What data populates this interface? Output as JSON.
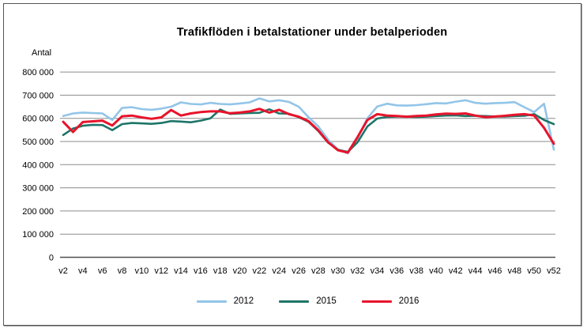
{
  "page": {
    "background": "#ffffff",
    "border_color": "#555555",
    "grid_color": "#8c8c8c",
    "axis_color": "#4f4f4f"
  },
  "chart_data": {
    "type": "line",
    "title": "Trafikflöden i betalstationer under betalperioden",
    "ylabel": "Antal",
    "xlabel": "",
    "ylim": [
      0,
      800000
    ],
    "y_tick_step": 100000,
    "y_tick_labels": [
      "0",
      "100 000",
      "200 000",
      "300 000",
      "400 000",
      "500 000",
      "600 000",
      "700 000",
      "800 000"
    ],
    "x_tick_labels": [
      "v2",
      "v4",
      "v6",
      "v8",
      "v10",
      "v12",
      "v14",
      "v16",
      "v18",
      "v20",
      "v22",
      "v24",
      "v26",
      "v28",
      "v30",
      "v32",
      "v34",
      "v36",
      "v38",
      "v40",
      "v42",
      "v44",
      "v46",
      "v48",
      "v50",
      "v52"
    ],
    "categories": [
      "v2",
      "v3",
      "v4",
      "v5",
      "v6",
      "v7",
      "v8",
      "v9",
      "v10",
      "v11",
      "v12",
      "v13",
      "v14",
      "v15",
      "v16",
      "v17",
      "v18",
      "v19",
      "v20",
      "v21",
      "v22",
      "v23",
      "v24",
      "v25",
      "v26",
      "v27",
      "v28",
      "v29",
      "v30",
      "v31",
      "v32",
      "v33",
      "v34",
      "v35",
      "v36",
      "v37",
      "v38",
      "v39",
      "v40",
      "v41",
      "v42",
      "v43",
      "v44",
      "v45",
      "v46",
      "v47",
      "v48",
      "v49",
      "v50",
      "v51",
      "v52"
    ],
    "grid": true,
    "legend_position": "bottom",
    "series": [
      {
        "name": "2012",
        "color": "#92C5E8",
        "values": [
          610000,
          621000,
          625000,
          623000,
          621000,
          593000,
          645000,
          648000,
          640000,
          637000,
          642000,
          650000,
          669000,
          662000,
          660000,
          667000,
          662000,
          660000,
          664000,
          669000,
          686000,
          673000,
          678000,
          671000,
          650000,
          605000,
          565000,
          508000,
          466000,
          449000,
          514000,
          600000,
          651000,
          663000,
          656000,
          655000,
          657000,
          661000,
          666000,
          664000,
          672000,
          678000,
          667000,
          663000,
          666000,
          667000,
          670000,
          648000,
          627000,
          663000,
          465000
        ]
      },
      {
        "name": "2015",
        "color": "#1E7568",
        "values": [
          528000,
          556000,
          568000,
          572000,
          571000,
          549000,
          575000,
          580000,
          578000,
          576000,
          580000,
          588000,
          586000,
          583000,
          590000,
          600000,
          638000,
          619000,
          621000,
          623000,
          624000,
          639000,
          621000,
          620000,
          605000,
          585000,
          545000,
          495000,
          464000,
          455000,
          497000,
          565000,
          599000,
          606000,
          608000,
          607000,
          606000,
          607000,
          610000,
          612000,
          613000,
          610000,
          611000,
          610000,
          608000,
          608000,
          610000,
          611000,
          618000,
          593000,
          575000
        ]
      },
      {
        "name": "2016",
        "color": "#E8132B",
        "values": [
          585000,
          541000,
          584000,
          587000,
          590000,
          569000,
          609000,
          612000,
          604000,
          598000,
          604000,
          636000,
          612000,
          621000,
          627000,
          630000,
          630000,
          622000,
          625000,
          630000,
          641000,
          625000,
          637000,
          618000,
          607000,
          588000,
          548000,
          497000,
          462000,
          452000,
          519000,
          593000,
          618000,
          612000,
          610000,
          607000,
          610000,
          612000,
          617000,
          620000,
          619000,
          621000,
          612000,
          605000,
          608000,
          611000,
          615000,
          618000,
          612000,
          559000,
          490000
        ]
      }
    ]
  }
}
